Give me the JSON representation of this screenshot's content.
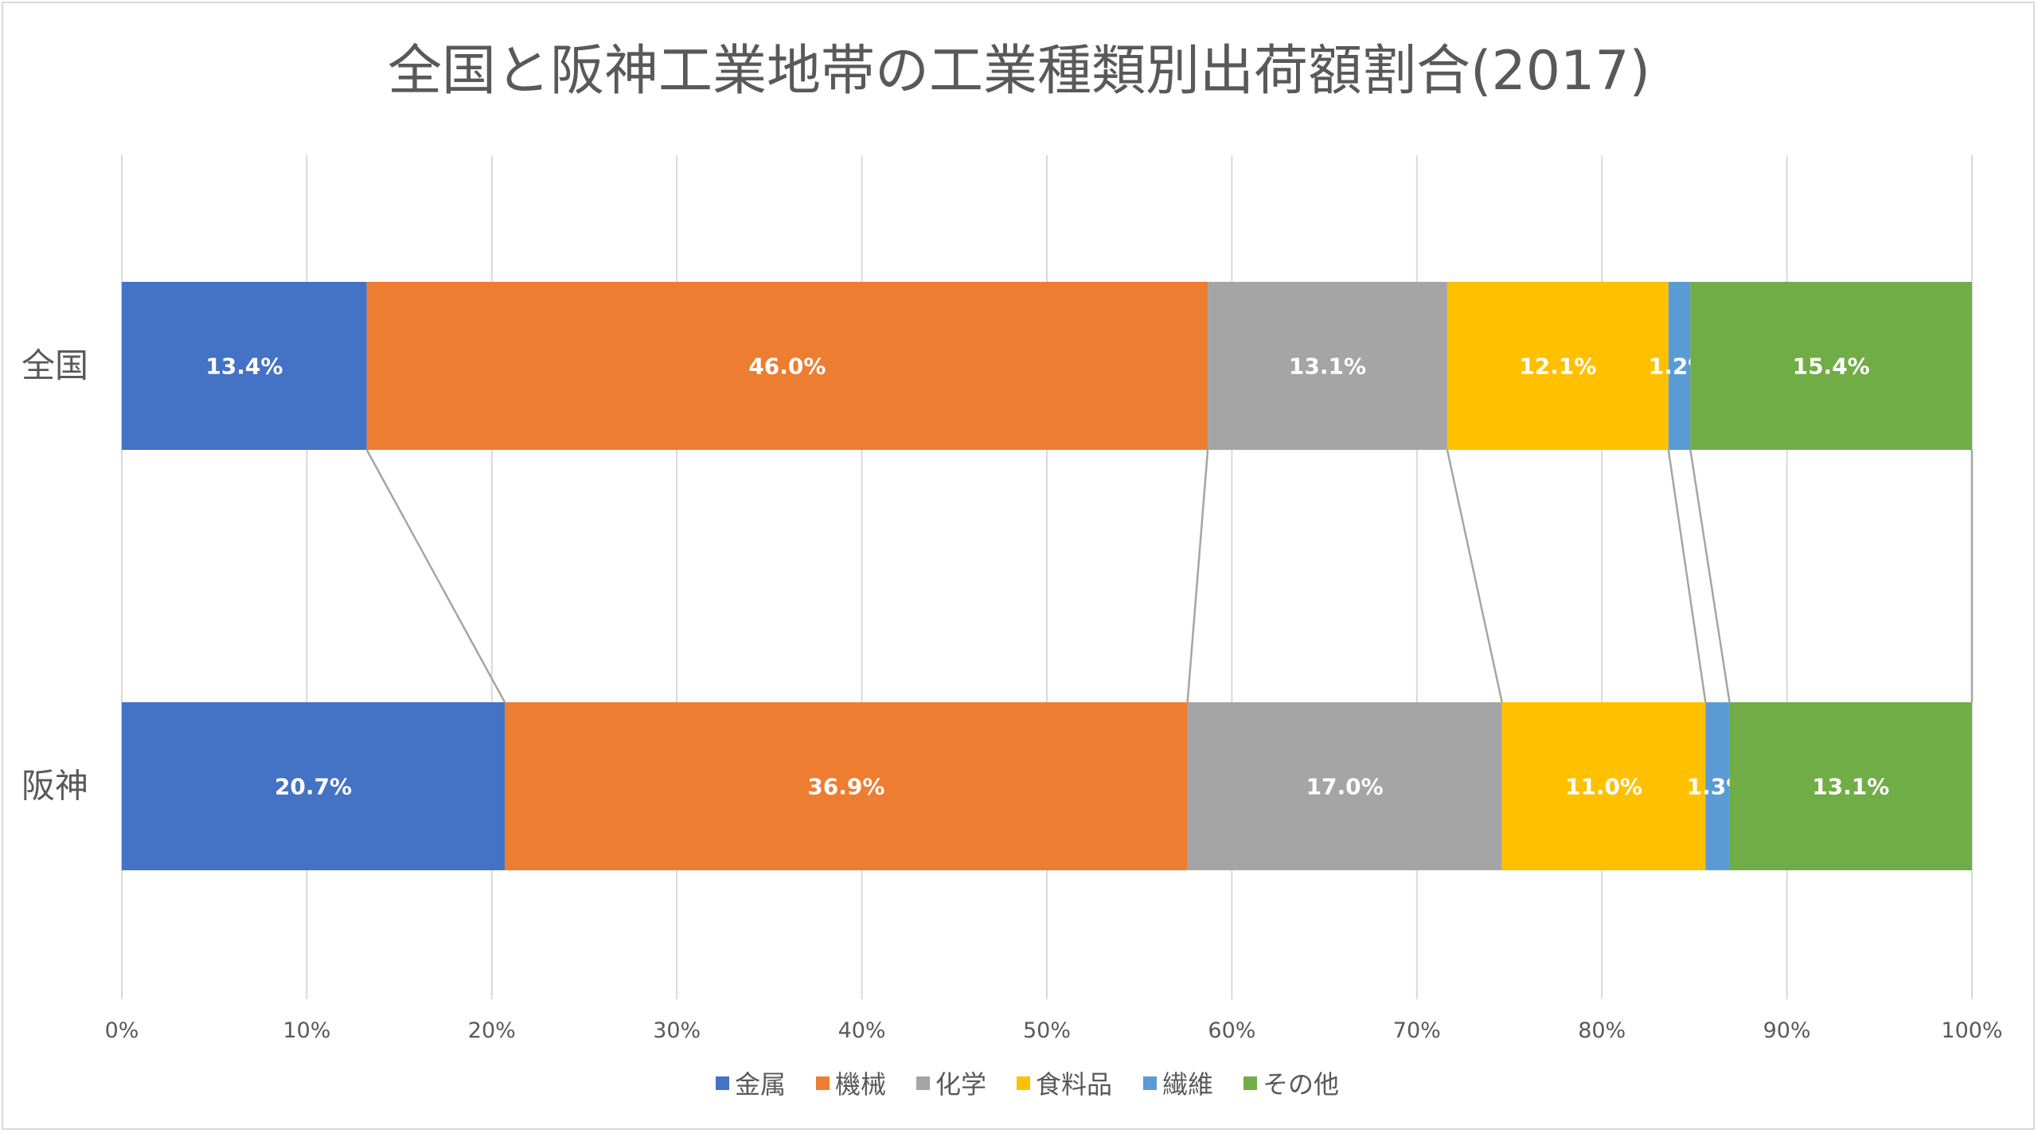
{
  "chart_data": {
    "type": "bar",
    "orientation": "horizontal",
    "stacked": "100%",
    "title": "全国と阪神工業地帯の工業種類別出荷額割合(2017)",
    "categories": [
      "全国",
      "阪神"
    ],
    "series": [
      {
        "name": "金属",
        "color": "#4472C4",
        "values": [
          13.4,
          20.7
        ],
        "labels": [
          "13.4%",
          "20.7%"
        ]
      },
      {
        "name": "機械",
        "color": "#ED7D31",
        "values": [
          46.0,
          36.9
        ],
        "labels": [
          "46.0%",
          "36.9%"
        ]
      },
      {
        "name": "化学",
        "color": "#A5A5A5",
        "values": [
          13.1,
          17.0
        ],
        "labels": [
          "13.1%",
          "17.0%"
        ]
      },
      {
        "name": "食料品",
        "color": "#FFC000",
        "values": [
          12.1,
          11.0
        ],
        "labels": [
          "12.1%",
          "11.0%"
        ]
      },
      {
        "name": "繊維",
        "color": "#5B9BD5",
        "values": [
          1.2,
          1.3
        ],
        "labels": [
          "1.2%",
          "1.3%"
        ]
      },
      {
        "name": "その他",
        "color": "#70AD47",
        "values": [
          15.4,
          13.1
        ],
        "labels": [
          "15.4%",
          "13.1%"
        ]
      }
    ],
    "xticks": [
      "0%",
      "10%",
      "20%",
      "30%",
      "40%",
      "50%",
      "60%",
      "70%",
      "80%",
      "90%",
      "100%"
    ],
    "xlim": [
      0,
      100
    ],
    "grid": true,
    "series_lines": true,
    "legend": "bottom"
  }
}
